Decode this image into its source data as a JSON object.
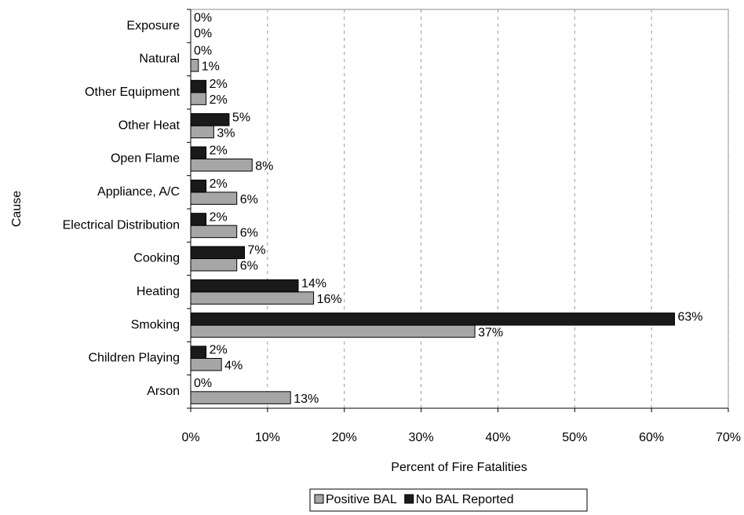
{
  "chart_data": {
    "type": "bar",
    "orientation": "horizontal",
    "x_label": "Percent of Fire Fatalities",
    "y_label": "Cause",
    "categories": [
      "Exposure",
      "Natural",
      "Other Equipment",
      "Other Heat",
      "Open Flame",
      "Appliance, A/C",
      "Electrical Distribution",
      "Cooking",
      "Heating",
      "Smoking",
      "Children Playing",
      "Arson"
    ],
    "series": [
      {
        "name": "Positive BAL",
        "color": "#a6a6a6",
        "values": [
          0,
          1,
          2,
          3,
          8,
          6,
          6,
          6,
          16,
          37,
          4,
          13
        ],
        "value_labels": [
          "0%",
          "1%",
          "2%",
          "3%",
          "8%",
          "6%",
          "6%",
          "6%",
          "16%",
          "37%",
          "4%",
          "13%"
        ]
      },
      {
        "name": "No BAL Reported",
        "color": "#1a1a1a",
        "values": [
          0,
          0,
          2,
          5,
          2,
          2,
          2,
          7,
          14,
          63,
          2,
          0
        ],
        "value_labels": [
          "0%",
          "0%",
          "2%",
          "5%",
          "2%",
          "2%",
          "2%",
          "7%",
          "14%",
          "63%",
          "2%",
          "0%"
        ]
      }
    ],
    "xlim": [
      0,
      70
    ],
    "xticks": [
      {
        "value": 0,
        "label": "0%"
      },
      {
        "value": 10,
        "label": "10%"
      },
      {
        "value": 20,
        "label": "20%"
      },
      {
        "value": 30,
        "label": "30%"
      },
      {
        "value": 40,
        "label": "40%"
      },
      {
        "value": 50,
        "label": "50%"
      },
      {
        "value": 60,
        "label": "60%"
      },
      {
        "value": 70,
        "label": "70%"
      }
    ],
    "grid": true,
    "legend": "bottom"
  }
}
